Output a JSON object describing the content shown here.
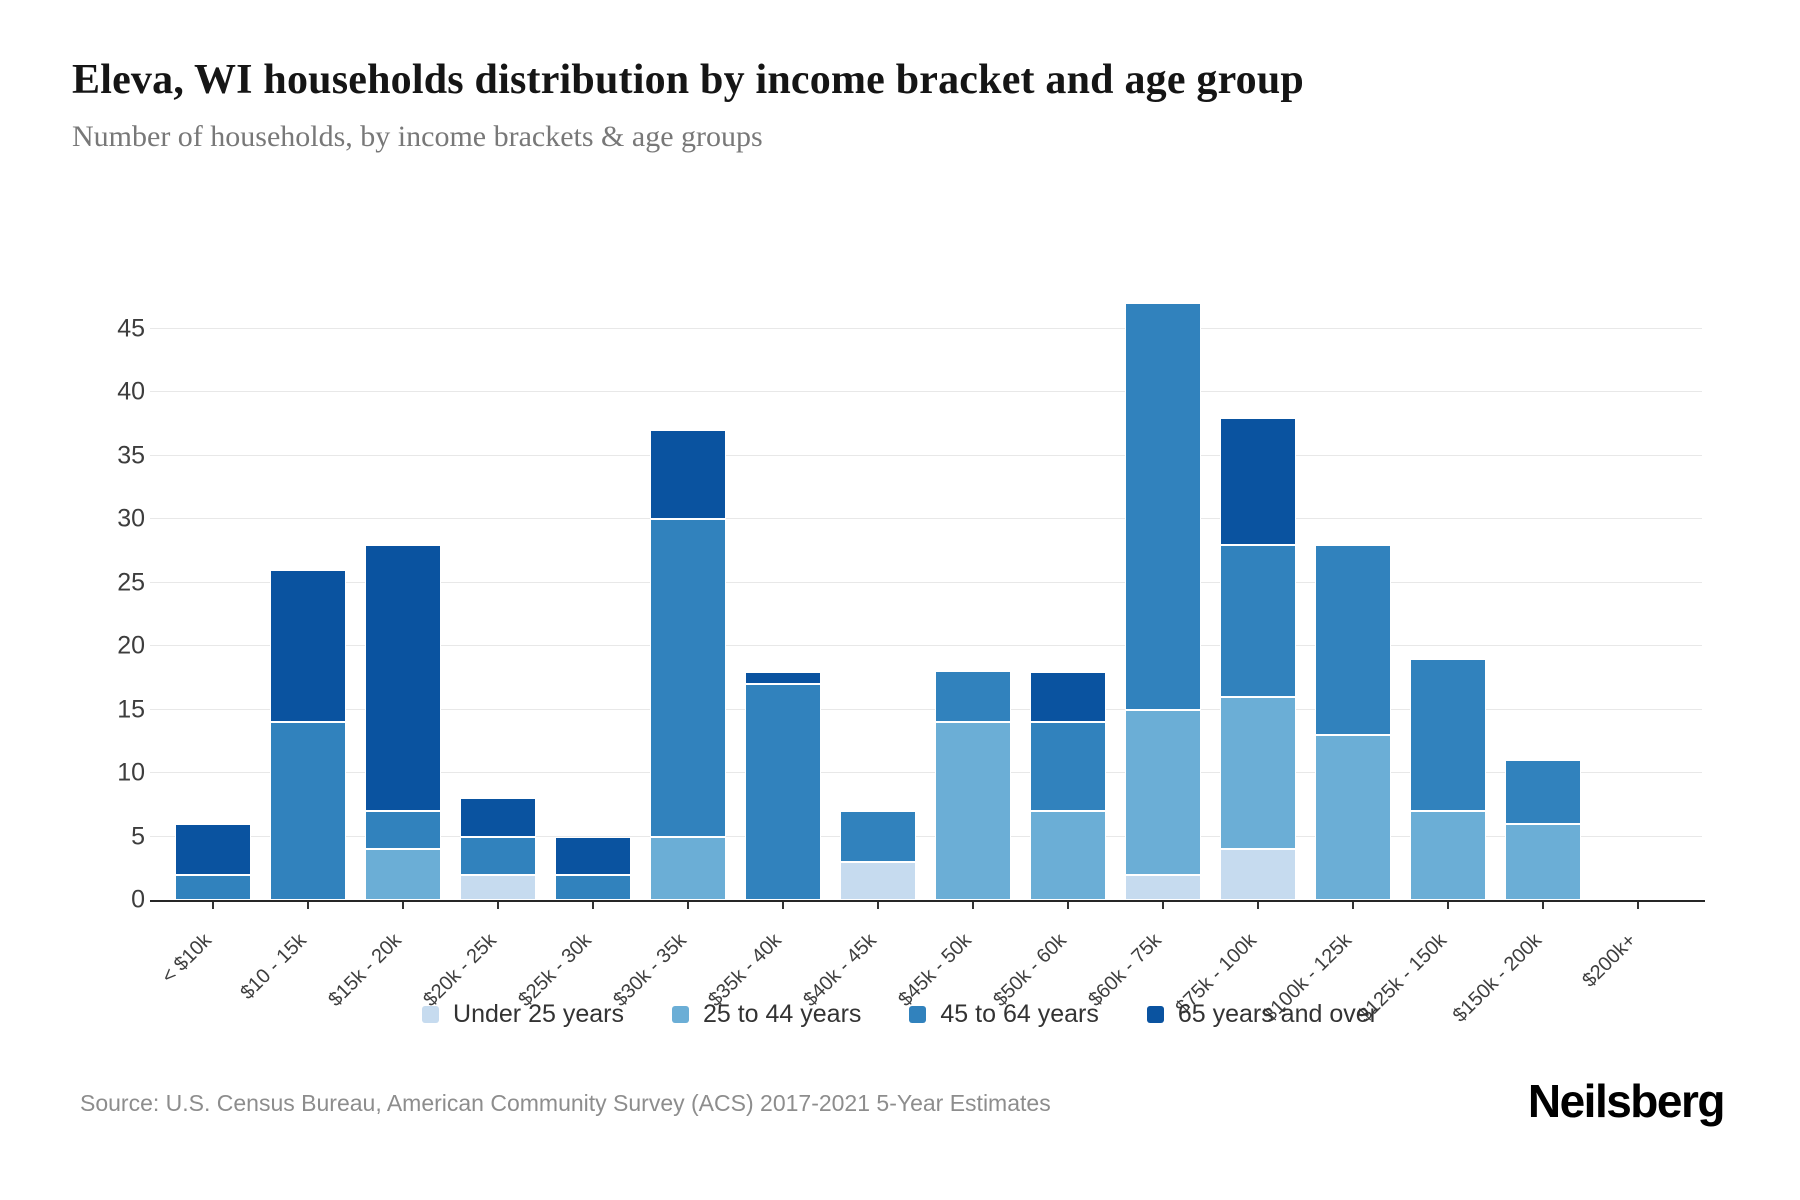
{
  "chart_data": {
    "type": "bar",
    "variant": "stacked-vertical",
    "title": "Eleva, WI households distribution by income bracket and age group",
    "subtitle": "Number of households, by income brackets & age groups",
    "xlabel": "",
    "ylabel": "",
    "grid": true,
    "legend_position": "bottom",
    "yticks": [
      0,
      5,
      10,
      15,
      20,
      25,
      30,
      35,
      40,
      45
    ],
    "ylim": [
      0,
      47
    ],
    "ylim_display": [
      0,
      51.2
    ],
    "categories": [
      "< $10k",
      "$10 - 15k",
      "$15k - 20k",
      "$20k - 25k",
      "$25k - 30k",
      "$30k - 35k",
      "$35k - 40k",
      "$40k - 45k",
      "$45k - 50k",
      "$50k - 60k",
      "$60k - 75k",
      "$75k - 100k",
      "$100k - 125k",
      "$125k - 150k",
      "$150k - 200k",
      "$200k+"
    ],
    "series": [
      {
        "name": "Under 25 years",
        "color": "#c6dbef",
        "values": [
          0,
          0,
          0,
          2,
          0,
          0,
          0,
          3,
          0,
          0,
          2,
          4,
          0,
          0,
          0,
          0
        ]
      },
      {
        "name": "25 to 44 years",
        "color": "#6baed6",
        "values": [
          0,
          0,
          4,
          0,
          0,
          5,
          0,
          0,
          14,
          7,
          13,
          12,
          13,
          7,
          6,
          0
        ]
      },
      {
        "name": "45 to 64 years",
        "color": "#3182bd",
        "values": [
          2,
          14,
          3,
          3,
          2,
          25,
          17,
          4,
          4,
          7,
          32,
          12,
          15,
          12,
          5,
          0
        ]
      },
      {
        "name": "65 years and over",
        "color": "#0a53a0",
        "values": [
          4,
          12,
          21,
          3,
          3,
          7,
          1,
          0,
          0,
          4,
          0,
          10,
          0,
          0,
          0,
          0
        ]
      }
    ],
    "totals": [
      6,
      26,
      28,
      8,
      5,
      37,
      18,
      7,
      18,
      18,
      47,
      38,
      28,
      19,
      11,
      0
    ]
  },
  "footer": {
    "source": "Source: U.S. Census Bureau, American Community Survey (ACS) 2017-2021 5-Year Estimates",
    "brand": "Neilsberg"
  }
}
